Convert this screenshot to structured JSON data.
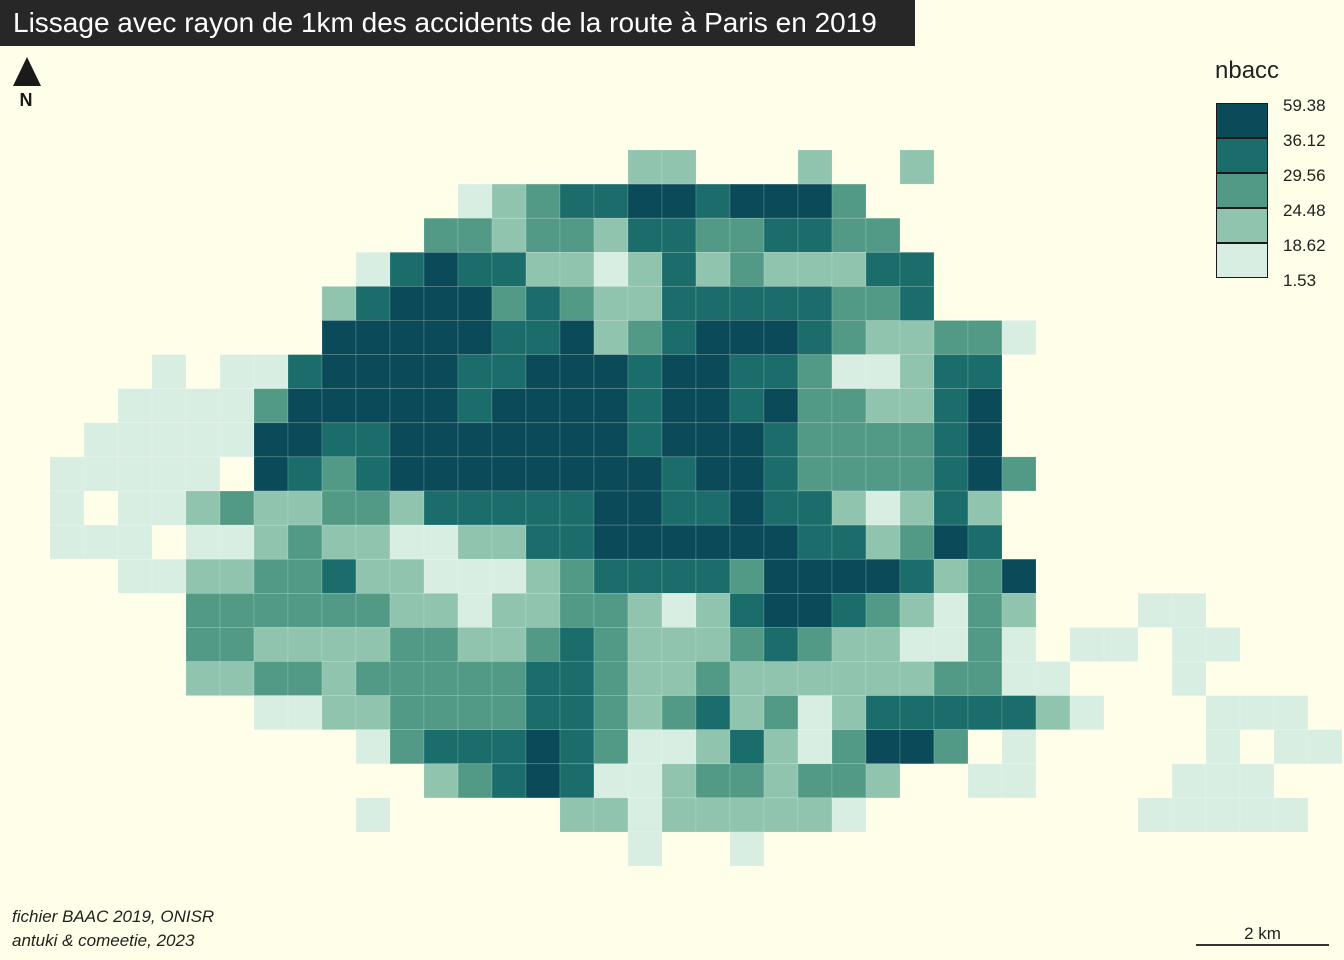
{
  "title": "Lissage avec rayon de 1km des accidents de la route à Paris en 2019",
  "north_arrow": {
    "label": "N",
    "icon": "north-arrow-icon"
  },
  "legend": {
    "title": "nbacc",
    "breaks": [
      "59.38",
      "36.12",
      "29.56",
      "24.48",
      "18.62",
      "1.53"
    ],
    "colors": [
      "#0b4a58",
      "#1b6d6c",
      "#529a86",
      "#90c4ae",
      "#d9eee3"
    ]
  },
  "source": {
    "line1": "fichier BAAC 2019, ONISR",
    "line2": "antuki & comeetie, 2023"
  },
  "scale_bar": {
    "label": "2 km"
  },
  "background_color": "#fefee9",
  "map_grid": {
    "rows": [
      "..................CC...C..C..........................",
      ".............DCBAAEEAEEEB............................",
      "............BBCBBCAABBAABB............................",
      "..........DAEAACCDCACBCCCAA...........................",
      ".........CAEEEBABCCAAAAABBA...........................",
      ".........EEEEEAAECBAEEEABCCBBD........................",
      "....D.DDAEEEEAAEEEAEEAABDDCAA.........................",
      "...DDDDBEEEEEAEEEEAEEAEBBCCAE.........................",
      "..DDDDDEEAAEEEEEEEAEEEABBBBAE.........................",
      ".DDDDD.EABAEEEEEEEEAEEABBBBAEB........................",
      ".D.DDCBCCBBCAAAAAEEAAEAACDCAC.........................",
      ".DDD.DDCBCCDDCCAAEEEEEEAACBEA.........................",
      "...DDCCBBACCDDDCBAAAABEEEEACBE........................",
      ".....BBBBBBCCDCCBBCDCAEEABCDBC...DD...................",
      ".....BBCCCCBBCCBABCCCBABCCDDBD.DD.DD..................",
      ".....CCBBCBBBBBAABCCBCCCCCCBBDD...D...................",
      ".......DDCCBBBBAABCBACBDCAAAAACD...DDD................",
      "..........DBAAAEABDDCACDBEEB.D.....D.DD...............",
      "............CBAEADDCBBCBBC..DD....DDD.................",
      "..........D.....CCDCCCCCD........DDDDD................",
      "..................D..D................................"
    ]
  }
}
